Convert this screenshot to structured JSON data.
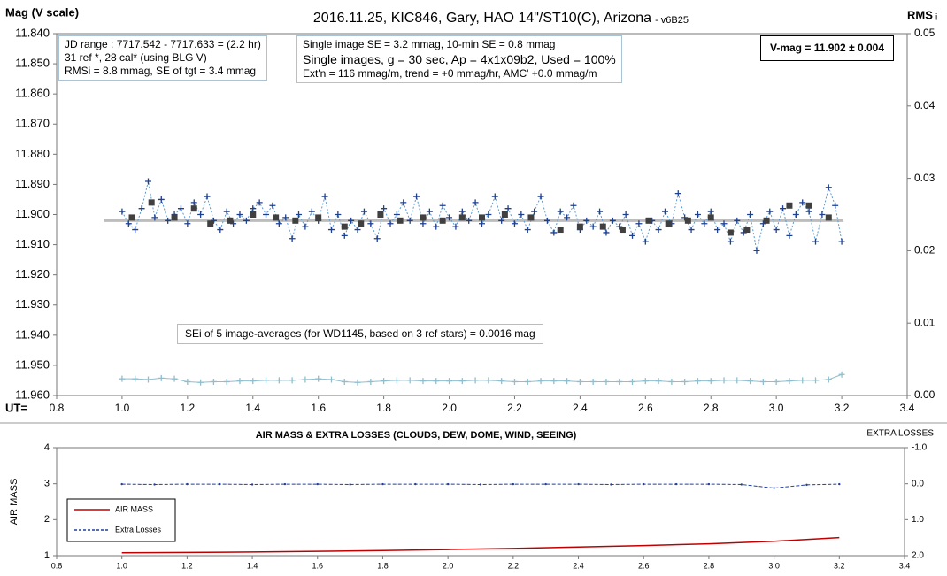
{
  "chart_data": [
    {
      "type": "line",
      "title": "2016.11.25, KIC846, Gary, HAO 14\"/ST10(C), Arizona",
      "subtitle": "- v6B25",
      "y_label": "Mag (V scale)",
      "y2_label": "RMS",
      "y2_label_sub": "i",
      "x_label": "UT=",
      "xlim": [
        0.8,
        3.4
      ],
      "xticks": [
        {
          "value": 0.8,
          "label": "0.8"
        },
        {
          "value": 1,
          "label": "1.0"
        },
        {
          "value": 1.2,
          "label": "1.2"
        },
        {
          "value": 1.4,
          "label": "1.4"
        },
        {
          "value": 1.6,
          "label": "1.6"
        },
        {
          "value": 1.8,
          "label": "1.8"
        },
        {
          "value": 2,
          "label": "2.0"
        },
        {
          "value": 2.2,
          "label": "2.2"
        },
        {
          "value": 2.4,
          "label": "2.4"
        },
        {
          "value": 2.6,
          "label": "2.6"
        },
        {
          "value": 2.8,
          "label": "2.8"
        },
        {
          "value": 3,
          "label": "3.0"
        },
        {
          "value": 3.2,
          "label": "3.2"
        },
        {
          "value": 3.4,
          "label": "3.4"
        }
      ],
      "ylim": [
        11.84,
        11.96
      ],
      "y_inverted": true,
      "yticks": [
        {
          "value": 11.84,
          "label": "11.840"
        },
        {
          "value": 11.85,
          "label": "11.850"
        },
        {
          "value": 11.86,
          "label": "11.860"
        },
        {
          "value": 11.87,
          "label": "11.870"
        },
        {
          "value": 11.88,
          "label": "11.880"
        },
        {
          "value": 11.89,
          "label": "11.890"
        },
        {
          "value": 11.9,
          "label": "11.900"
        },
        {
          "value": 11.91,
          "label": "11.910"
        },
        {
          "value": 11.92,
          "label": "11.920"
        },
        {
          "value": 11.93,
          "label": "11.930"
        },
        {
          "value": 11.94,
          "label": "11.940"
        },
        {
          "value": 11.95,
          "label": "11.950"
        },
        {
          "value": 11.96,
          "label": "11.960"
        }
      ],
      "y2lim": [
        0,
        0.05
      ],
      "y2ticks": [
        {
          "value": 0,
          "label": "0.00"
        },
        {
          "value": 0.01,
          "label": "0.01"
        },
        {
          "value": 0.02,
          "label": "0.02"
        },
        {
          "value": 0.03,
          "label": "0.03"
        },
        {
          "value": 0.04,
          "label": "0.04"
        },
        {
          "value": 0.05,
          "label": "0.05"
        }
      ],
      "grid": false,
      "reference_line": {
        "value": 11.902,
        "color": "#bdbdbd"
      },
      "annotations": [
        {
          "lines": [
            "JD range  : 7717.542 - 7717.633  = (2.2 hr)",
            "31 ref *, 28 cal* (using BLG V)",
            "RMSi = 8.8 mmag, SE of tgt = 3.4 mmag"
          ]
        },
        {
          "lines": [
            "Single image SE = 3.2 mmag, 10-min SE = 0.8 mmag",
            "Single images, g = 30 sec, Ap = 4x1x09b2, Used = 100%",
            "Ext'n = 116 mmag/m, trend = +0 mmag/hr, AMC' +0.0 mmag/m"
          ]
        },
        {
          "lines": [
            "V-mag = 11.902 ± 0.004"
          ]
        },
        {
          "lines": [
            "SEi of 5 image-averages (for WD1145, based on 3 ref stars) = 0.0016 mag"
          ]
        }
      ],
      "series": [
        {
          "color": "#1f3f8f",
          "line_color": "#5b9bd5",
          "line_style": "dotted",
          "marker": "plus",
          "x": [
            1,
            1.02,
            1.04,
            1.06,
            1.08,
            1.1,
            1.12,
            1.14,
            1.16,
            1.18,
            1.2,
            1.22,
            1.24,
            1.26,
            1.28,
            1.3,
            1.32,
            1.34,
            1.36,
            1.38,
            1.4,
            1.42,
            1.44,
            1.46,
            1.48,
            1.5,
            1.52,
            1.54,
            1.56,
            1.58,
            1.6,
            1.62,
            1.64,
            1.66,
            1.68,
            1.7,
            1.72,
            1.74,
            1.76,
            1.78,
            1.8,
            1.82,
            1.84,
            1.86,
            1.88,
            1.9,
            1.92,
            1.94,
            1.96,
            1.98,
            2,
            2.02,
            2.04,
            2.06,
            2.08,
            2.1,
            2.12,
            2.14,
            2.16,
            2.18,
            2.2,
            2.22,
            2.24,
            2.26,
            2.28,
            2.3,
            2.32,
            2.34,
            2.36,
            2.38,
            2.4,
            2.42,
            2.44,
            2.46,
            2.48,
            2.5,
            2.52,
            2.54,
            2.56,
            2.58,
            2.6,
            2.62,
            2.64,
            2.66,
            2.68,
            2.7,
            2.72,
            2.74,
            2.76,
            2.78,
            2.8,
            2.82,
            2.84,
            2.86,
            2.88,
            2.9,
            2.92,
            2.94,
            2.96,
            2.98,
            3,
            3.02,
            3.04,
            3.06,
            3.08,
            3.1,
            3.12,
            3.14,
            3.16,
            3.18,
            3.2
          ],
          "values": [
            11.899,
            11.903,
            11.905,
            11.898,
            11.889,
            11.901,
            11.895,
            11.902,
            11.9,
            11.898,
            11.903,
            11.896,
            11.9,
            11.894,
            11.902,
            11.905,
            11.899,
            11.903,
            11.9,
            11.902,
            11.898,
            11.896,
            11.9,
            11.897,
            11.903,
            11.901,
            11.908,
            11.9,
            11.904,
            11.899,
            11.902,
            11.894,
            11.905,
            11.9,
            11.907,
            11.902,
            11.905,
            11.899,
            11.903,
            11.908,
            11.898,
            11.903,
            11.9,
            11.896,
            11.902,
            11.894,
            11.903,
            11.899,
            11.904,
            11.897,
            11.901,
            11.904,
            11.899,
            11.902,
            11.896,
            11.903,
            11.9,
            11.894,
            11.902,
            11.898,
            11.903,
            11.9,
            11.905,
            11.899,
            11.894,
            11.902,
            11.906,
            11.899,
            11.901,
            11.897,
            11.905,
            11.902,
            11.904,
            11.899,
            11.906,
            11.902,
            11.904,
            11.9,
            11.907,
            11.903,
            11.909,
            11.902,
            11.905,
            11.899,
            11.903,
            11.893,
            11.901,
            11.905,
            11.9,
            11.903,
            11.899,
            11.905,
            11.903,
            11.909,
            11.902,
            11.906,
            11.9,
            11.912,
            11.903,
            11.899,
            11.905,
            11.898,
            11.907,
            11.9,
            11.896,
            11.899,
            11.909,
            11.9,
            11.891,
            11.897,
            11.909
          ]
        },
        {
          "color": "#404040",
          "line": false,
          "marker": "square",
          "x": [
            1.03,
            1.09,
            1.16,
            1.22,
            1.27,
            1.33,
            1.4,
            1.47,
            1.53,
            1.6,
            1.68,
            1.73,
            1.79,
            1.85,
            1.92,
            1.98,
            2.04,
            2.1,
            2.17,
            2.25,
            2.34,
            2.4,
            2.47,
            2.53,
            2.61,
            2.67,
            2.73,
            2.8,
            2.86,
            2.91,
            2.97,
            3.04,
            3.1,
            3.16
          ],
          "values": [
            11.901,
            11.896,
            11.901,
            11.898,
            11.903,
            11.902,
            11.9,
            11.901,
            11.902,
            11.901,
            11.904,
            11.903,
            11.9,
            11.902,
            11.901,
            11.902,
            11.901,
            11.901,
            11.9,
            11.901,
            11.905,
            11.904,
            11.904,
            11.905,
            11.902,
            11.903,
            11.902,
            11.901,
            11.906,
            11.905,
            11.902,
            11.897,
            11.897,
            11.901
          ]
        },
        {
          "color": "#8fbfcf",
          "line_color": "#8fbfcf",
          "line_style": "solid",
          "marker": "plus",
          "axis": "y2",
          "x": [
            1,
            1.04,
            1.08,
            1.12,
            1.16,
            1.2,
            1.24,
            1.28,
            1.32,
            1.36,
            1.4,
            1.44,
            1.48,
            1.52,
            1.56,
            1.6,
            1.64,
            1.68,
            1.72,
            1.76,
            1.8,
            1.84,
            1.88,
            1.92,
            1.96,
            2,
            2.04,
            2.08,
            2.12,
            2.16,
            2.2,
            2.24,
            2.28,
            2.32,
            2.36,
            2.4,
            2.44,
            2.48,
            2.52,
            2.56,
            2.6,
            2.64,
            2.68,
            2.72,
            2.76,
            2.8,
            2.84,
            2.88,
            2.92,
            2.96,
            3,
            3.04,
            3.08,
            3.12,
            3.16,
            3.2
          ],
          "values": [
            0.0023,
            0.0023,
            0.0022,
            0.0024,
            0.0023,
            0.0019,
            0.0018,
            0.0019,
            0.0019,
            0.002,
            0.002,
            0.0021,
            0.0021,
            0.0021,
            0.0022,
            0.0023,
            0.0022,
            0.0019,
            0.0018,
            0.0019,
            0.002,
            0.0021,
            0.0021,
            0.002,
            0.002,
            0.002,
            0.002,
            0.0021,
            0.0021,
            0.002,
            0.0019,
            0.0019,
            0.002,
            0.002,
            0.002,
            0.0019,
            0.0019,
            0.0019,
            0.0019,
            0.0019,
            0.002,
            0.002,
            0.0019,
            0.0019,
            0.002,
            0.002,
            0.0021,
            0.0021,
            0.002,
            0.0019,
            0.0019,
            0.002,
            0.0021,
            0.0021,
            0.0022,
            0.0029
          ]
        }
      ]
    },
    {
      "type": "line",
      "title": "AIR MASS & EXTRA LOSSES (CLOUDS, DEW, DOME, WIND, SEEING)",
      "y_label": "AIR MASS",
      "y2_label": "EXTRA LOSSES",
      "xlim": [
        0.8,
        3.4
      ],
      "xticks": [
        {
          "value": 0.8,
          "label": "0.8"
        },
        {
          "value": 1,
          "label": "1.0"
        },
        {
          "value": 1.2,
          "label": "1.2"
        },
        {
          "value": 1.4,
          "label": "1.4"
        },
        {
          "value": 1.6,
          "label": "1.6"
        },
        {
          "value": 1.8,
          "label": "1.8"
        },
        {
          "value": 2,
          "label": "2.0"
        },
        {
          "value": 2.2,
          "label": "2.2"
        },
        {
          "value": 2.4,
          "label": "2.4"
        },
        {
          "value": 2.6,
          "label": "2.6"
        },
        {
          "value": 2.8,
          "label": "2.8"
        },
        {
          "value": 3,
          "label": "3.0"
        },
        {
          "value": 3.2,
          "label": "3.2"
        },
        {
          "value": 3.4,
          "label": "3.4"
        }
      ],
      "ylim": [
        1,
        4
      ],
      "yticks": [
        1,
        2,
        3,
        4
      ],
      "y2lim": [
        -1,
        2
      ],
      "y2_inverted": true,
      "y2ticks": [
        {
          "value": -1,
          "label": "-1.0"
        },
        {
          "value": 0,
          "label": "0.0"
        },
        {
          "value": 1,
          "label": "1.0"
        },
        {
          "value": 2,
          "label": "2.0"
        }
      ],
      "grid": false,
      "legend": "lower left",
      "series": [
        {
          "name": "AIR MASS",
          "color": "#c00000",
          "line_style": "solid",
          "x": [
            1,
            1.2,
            1.4,
            1.6,
            1.8,
            2,
            2.2,
            2.4,
            2.6,
            2.8,
            3,
            3.2
          ],
          "values": [
            1.08,
            1.09,
            1.1,
            1.12,
            1.14,
            1.17,
            1.2,
            1.24,
            1.28,
            1.33,
            1.4,
            1.5
          ]
        },
        {
          "name": "Extra Losses",
          "color": "#1f3f9f",
          "line_style": "dashed",
          "marker": "dot",
          "axis": "y2",
          "x": [
            1,
            1.1,
            1.2,
            1.3,
            1.4,
            1.5,
            1.6,
            1.7,
            1.8,
            1.9,
            2,
            2.1,
            2.2,
            2.3,
            2.4,
            2.5,
            2.6,
            2.7,
            2.8,
            2.9,
            3,
            3.1,
            3.2
          ],
          "values": [
            0.01,
            0.02,
            0.01,
            0.01,
            0.02,
            0.01,
            0.01,
            0.02,
            0.01,
            0.01,
            0.01,
            0.02,
            0.01,
            0.01,
            0.01,
            0.02,
            0.01,
            0.01,
            0.01,
            0.02,
            0.12,
            0.03,
            0.01
          ]
        }
      ]
    }
  ]
}
